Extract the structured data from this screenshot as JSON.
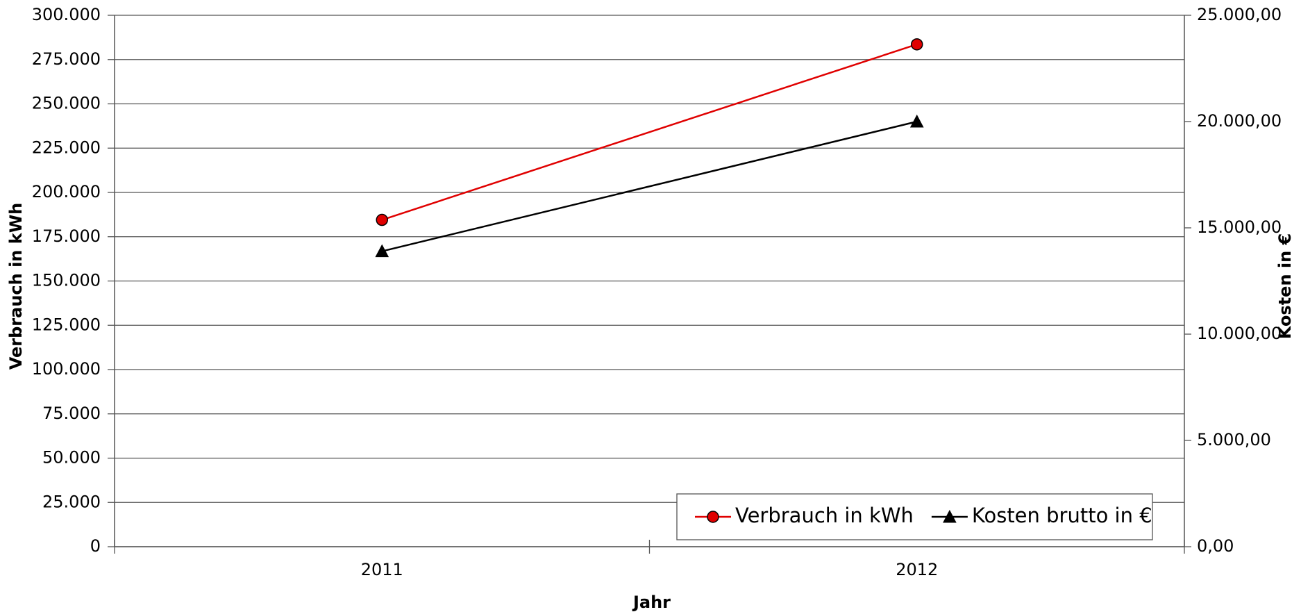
{
  "chart_data": {
    "type": "line",
    "x_label": "Jahr",
    "y_label": "Verbrauch in kWh",
    "y2_label": "Kosten in €",
    "categories": [
      "2011",
      "2012"
    ],
    "series": [
      {
        "name": "Verbrauch in kWh",
        "color": "#e00000",
        "marker": "circle",
        "values": [
          184500,
          283600
        ]
      },
      {
        "name": "Kosten brutto in €",
        "color": "#000000",
        "marker": "triangle",
        "axis": "y2",
        "values": [
          13900,
          20000
        ]
      }
    ],
    "ylim": [
      0,
      300000
    ],
    "yticks": [
      0,
      {
        "value": 25000,
        "label": "25.000"
      },
      {
        "value": 50000,
        "label": "50.000"
      },
      {
        "value": 75000,
        "label": "75.000"
      },
      {
        "value": 100000,
        "label": "100.000"
      },
      {
        "value": 125000,
        "label": "125.000"
      },
      {
        "value": 150000,
        "label": "150.000"
      },
      {
        "value": 175000,
        "label": "175.000"
      },
      {
        "value": 200000,
        "label": "200.000"
      },
      {
        "value": 225000,
        "label": "225.000"
      },
      {
        "value": 250000,
        "label": "250.000"
      },
      {
        "value": 275000,
        "label": "275.000"
      },
      {
        "value": 300000,
        "label": "300.000"
      }
    ],
    "y2lim": [
      0,
      25000
    ],
    "y2ticks": [
      {
        "value": 0,
        "label": "0,00"
      },
      {
        "value": 5000,
        "label": "5.000,00"
      },
      {
        "value": 10000,
        "label": "10.000,00"
      },
      {
        "value": 15000,
        "label": "15.000,00"
      },
      {
        "value": 20000,
        "label": "20.000,00"
      },
      {
        "value": 25000,
        "label": "25.000,00"
      }
    ],
    "grid": true,
    "legend": "lower right"
  }
}
